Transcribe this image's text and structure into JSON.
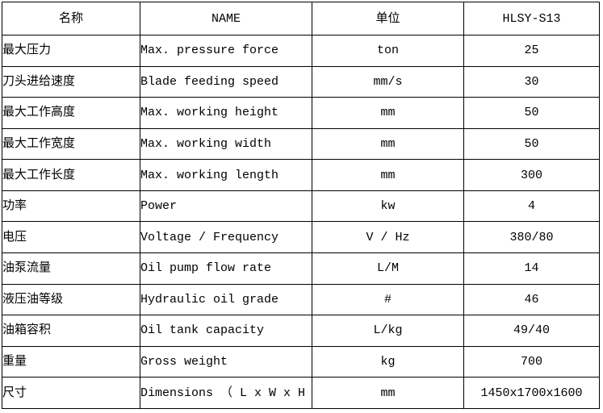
{
  "table": {
    "headers": [
      {
        "label": "名称"
      },
      {
        "label": "NAME"
      },
      {
        "label": "单位"
      },
      {
        "label": "HLSY-S13"
      }
    ],
    "rows": [
      {
        "cn": "最大压力",
        "en": "Max. pressure force",
        "unit": "ton",
        "value": "25"
      },
      {
        "cn": "刀头进给速度",
        "en": "Blade feeding speed",
        "unit": "mm/s",
        "value": "30"
      },
      {
        "cn": "最大工作高度",
        "en": "Max. working height",
        "unit": "mm",
        "value": "50"
      },
      {
        "cn": "最大工作宽度",
        "en": "Max. working width",
        "unit": "mm",
        "value": "50"
      },
      {
        "cn": "最大工作长度",
        "en": "Max. working length",
        "unit": "mm",
        "value": "300"
      },
      {
        "cn": "功率",
        "en": "Power",
        "unit": "kw",
        "value": "4"
      },
      {
        "cn": "电压",
        "en": "Voltage / Frequency",
        "unit": "V / Hz",
        "value": "380/80"
      },
      {
        "cn": "油泵流量",
        "en": "Oil pump flow rate",
        "unit": "L/M",
        "value": "14"
      },
      {
        "cn": "液压油等级",
        "en": "Hydraulic oil grade",
        "unit": "#",
        "value": "46"
      },
      {
        "cn": "油箱容积",
        "en": "Oil tank capacity",
        "unit": "L/kg",
        "value": "49/40"
      },
      {
        "cn": "重量",
        "en": "Gross weight",
        "unit": "kg",
        "value": "700"
      },
      {
        "cn": "尺寸",
        "en": "Dimensions （ L x W x H ）",
        "unit": "mm",
        "value": "1450x1700x1600"
      }
    ],
    "colors": {
      "border": "#000000",
      "background": "#ffffff",
      "text": "#000000"
    }
  }
}
